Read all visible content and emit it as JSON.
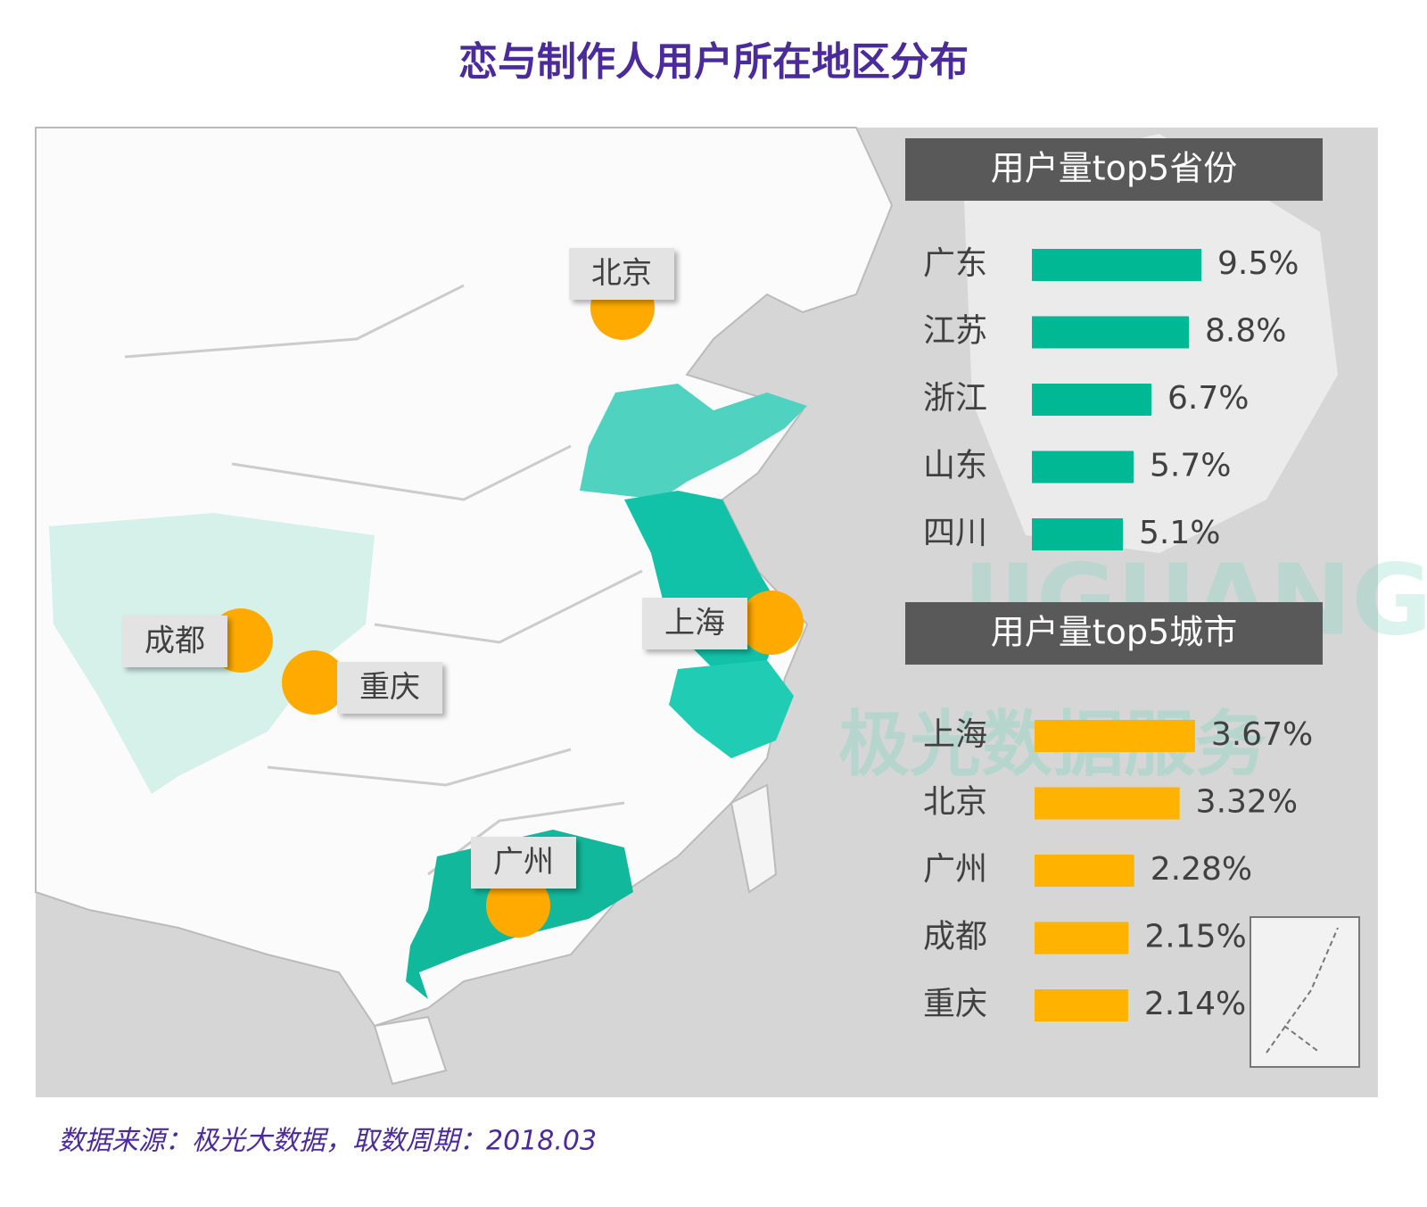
{
  "title": "恋与制作人用户所在地区分布",
  "map": {
    "cities": [
      "北京",
      "上海",
      "成都",
      "重庆",
      "广州"
    ]
  },
  "watermark": {
    "brand": "JIGUANG",
    "service": "极光数据服务"
  },
  "chart_data": [
    {
      "type": "bar",
      "title": "用户量top5省份",
      "categories": [
        "广东",
        "江苏",
        "浙江",
        "山东",
        "四川"
      ],
      "values": [
        9.5,
        8.8,
        6.7,
        5.7,
        5.1
      ],
      "value_labels": [
        "9.5%",
        "8.8%",
        "6.7%",
        "5.7%",
        "5.1%"
      ],
      "color": "#00b894"
    },
    {
      "type": "bar",
      "title": "用户量top5城市",
      "categories": [
        "上海",
        "北京",
        "广州",
        "成都",
        "重庆"
      ],
      "values": [
        3.67,
        3.32,
        2.28,
        2.15,
        2.14
      ],
      "value_labels": [
        "3.67%",
        "3.32%",
        "2.28%",
        "2.15%",
        "2.14%"
      ],
      "color": "#ffb300"
    }
  ],
  "source": "数据来源：极光大数据，取数周期：2018.03"
}
